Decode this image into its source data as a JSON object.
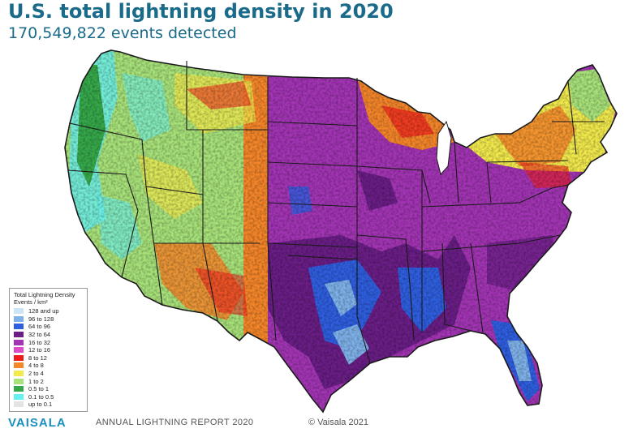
{
  "header": {
    "title": "U.S. total lightning density in 2020",
    "subtitle": "170,549,822 events detected"
  },
  "legend": {
    "title": "Total Lightning Density",
    "units": "Events / km²",
    "items": [
      {
        "label": "128 and up",
        "color": "#cde6f7"
      },
      {
        "label": "96 to 128",
        "color": "#7fb2ea"
      },
      {
        "label": "64 to 96",
        "color": "#2f5fe0"
      },
      {
        "label": "32 to 64",
        "color": "#6a1e86"
      },
      {
        "label": "16 to 32",
        "color": "#a335b5"
      },
      {
        "label": "12 to 16",
        "color": "#e04cc8"
      },
      {
        "label": "8 to 12",
        "color": "#ee1c1c"
      },
      {
        "label": "4 to 8",
        "color": "#f5862a"
      },
      {
        "label": "2 to 4",
        "color": "#f2ea4d"
      },
      {
        "label": "1 to 2",
        "color": "#a8e27a"
      },
      {
        "label": "0.5 to 1",
        "color": "#36a84a"
      },
      {
        "label": "0.1 to 0.5",
        "color": "#66f0f0"
      },
      {
        "label": "up to 0.1",
        "color": "#e3e3e3"
      }
    ]
  },
  "footer": {
    "brand": "VAISALA",
    "report": "ANNUAL LIGHTNING REPORT 2020",
    "copyright": "© Vaisala 2021"
  },
  "colors": {
    "title": "#1a6a8a",
    "brand": "#1a8fc0",
    "state_border": "#1a1a1a"
  }
}
